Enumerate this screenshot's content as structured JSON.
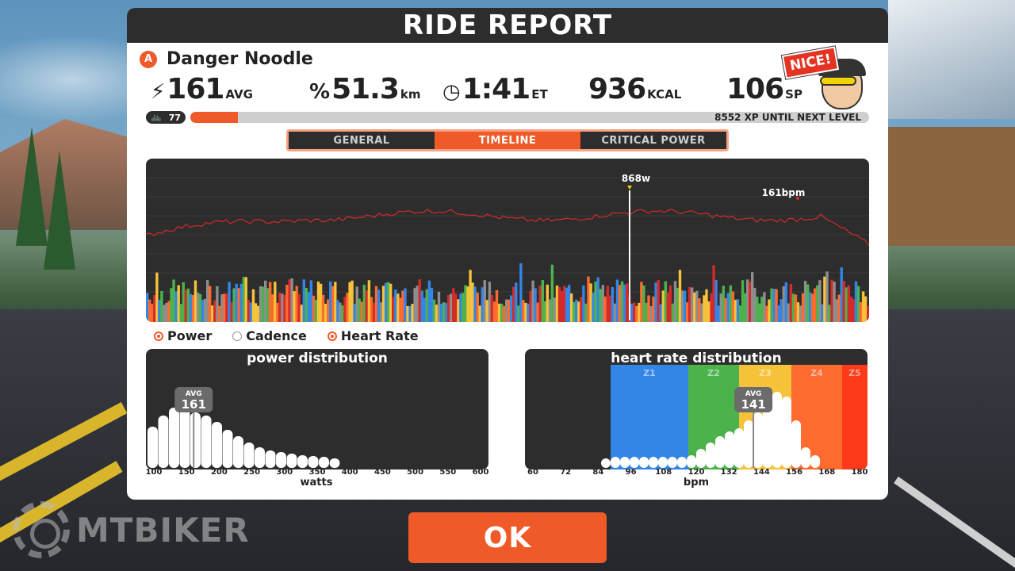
{
  "header": {
    "title": "RIDE REPORT"
  },
  "rider": {
    "category": "A",
    "name": "Danger Noodle",
    "badge": "NICE!"
  },
  "stats": [
    {
      "id": "power",
      "icon": "⚡",
      "value": "161",
      "unit": "AVG"
    },
    {
      "id": "distance",
      "icon": "%",
      "value": "51.3",
      "unit": "km"
    },
    {
      "id": "time",
      "icon": "◷",
      "value": "1:41",
      "unit": "ET"
    },
    {
      "id": "calories",
      "icon": "",
      "value": "936",
      "unit": "KCAL"
    },
    {
      "id": "sp",
      "icon": "",
      "value": "106",
      "unit": "SP"
    }
  ],
  "level": {
    "value": "77",
    "xp_text": "8552 XP UNTIL NEXT LEVEL",
    "progress": 0.07
  },
  "tabs": {
    "general": "GENERAL",
    "timeline": "TIMELINE",
    "critical_power": "CRITICAL POWER",
    "active": "TIMELINE"
  },
  "timeline": {
    "peak_power_label": "868w",
    "peak_hr_label": "161bpm"
  },
  "legend": {
    "power": "Power",
    "cadence": "Cadence",
    "heart_rate": "Heart Rate"
  },
  "power_distribution": {
    "title": "power distribution",
    "avg_label": "AVG",
    "avg_value": "161",
    "xlabel": "watts",
    "ticks": [
      "100",
      "150",
      "200",
      "250",
      "300",
      "350",
      "400",
      "450",
      "500",
      "550",
      "600"
    ]
  },
  "hr_distribution": {
    "title": "heart rate distribution",
    "avg_label": "AVG",
    "avg_value": "141",
    "xlabel": "bpm",
    "zones": [
      "Z1",
      "Z2",
      "Z3",
      "Z4",
      "Z5"
    ],
    "ticks": [
      "60",
      "72",
      "84",
      "96",
      "108",
      "120",
      "132",
      "144",
      "156",
      "168",
      "180"
    ]
  },
  "ok_button": {
    "label": "OK"
  },
  "watermark": {
    "text": "MTBIKER"
  },
  "colors": {
    "accent": "#f05a28",
    "panel_dark": "#2d2d2d",
    "hr_line": "#d42a2a",
    "z1": "#3385e6",
    "z2": "#4cb34c",
    "z3": "#f5c23a",
    "z4": "#ff6a2e",
    "z5": "#ff3a1a"
  }
}
